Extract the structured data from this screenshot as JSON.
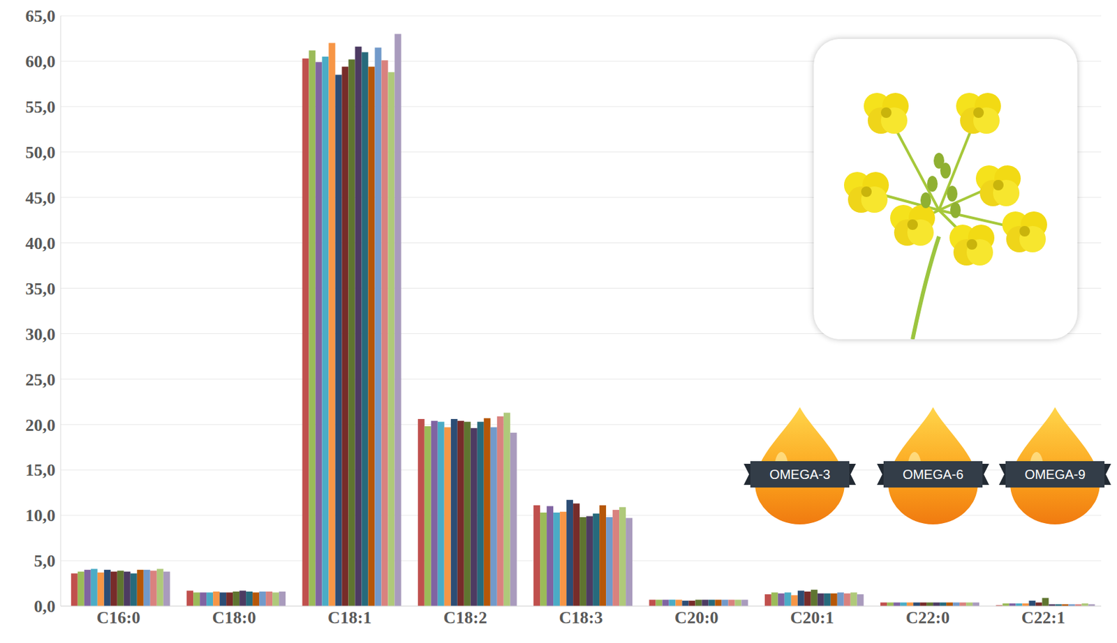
{
  "chart_data": {
    "type": "bar",
    "categories": [
      "C16:0",
      "C18:0",
      "C18:1",
      "C18:2",
      "C18:3",
      "C20:0",
      "C20:1",
      "C22:0",
      "C22:1"
    ],
    "series": [
      {
        "color": "#C0504D",
        "values": [
          3.6,
          1.7,
          60.3,
          20.6,
          11.1,
          0.7,
          1.3,
          0.4,
          0.1
        ]
      },
      {
        "color": "#9BBB59",
        "values": [
          3.8,
          1.5,
          61.2,
          19.8,
          10.3,
          0.7,
          1.5,
          0.4,
          0.3
        ]
      },
      {
        "color": "#8064A2",
        "values": [
          4.0,
          1.5,
          59.9,
          20.4,
          11.0,
          0.7,
          1.4,
          0.4,
          0.3
        ]
      },
      {
        "color": "#4BACC6",
        "values": [
          4.1,
          1.5,
          60.5,
          20.3,
          10.3,
          0.7,
          1.5,
          0.4,
          0.3
        ]
      },
      {
        "color": "#F79646",
        "values": [
          3.7,
          1.6,
          62.0,
          19.7,
          10.4,
          0.7,
          1.2,
          0.4,
          0.3
        ]
      },
      {
        "color": "#2C4D75",
        "values": [
          4.0,
          1.5,
          58.5,
          20.6,
          11.7,
          0.6,
          1.7,
          0.4,
          0.6
        ]
      },
      {
        "color": "#772C2A",
        "values": [
          3.8,
          1.5,
          59.4,
          20.4,
          11.3,
          0.6,
          1.6,
          0.4,
          0.4
        ]
      },
      {
        "color": "#5F7530",
        "values": [
          3.9,
          1.6,
          60.2,
          20.3,
          9.8,
          0.7,
          1.8,
          0.4,
          0.9
        ]
      },
      {
        "color": "#4D3B62",
        "values": [
          3.8,
          1.7,
          61.6,
          19.6,
          9.9,
          0.7,
          1.4,
          0.4,
          0.2
        ]
      },
      {
        "color": "#276A7C",
        "values": [
          3.6,
          1.6,
          61.0,
          20.3,
          10.2,
          0.7,
          1.4,
          0.4,
          0.2
        ]
      },
      {
        "color": "#B65708",
        "values": [
          4.0,
          1.5,
          59.4,
          20.7,
          11.1,
          0.7,
          1.4,
          0.4,
          0.2
        ]
      },
      {
        "color": "#729ACA",
        "values": [
          4.0,
          1.6,
          61.5,
          19.7,
          9.8,
          0.7,
          1.5,
          0.4,
          0.2
        ]
      },
      {
        "color": "#D9827F",
        "values": [
          3.9,
          1.6,
          60.1,
          20.9,
          10.6,
          0.7,
          1.4,
          0.4,
          0.2
        ]
      },
      {
        "color": "#AFC97A",
        "values": [
          4.1,
          1.5,
          58.8,
          21.3,
          10.9,
          0.7,
          1.5,
          0.4,
          0.3
        ]
      },
      {
        "color": "#A99BBD",
        "values": [
          3.8,
          1.6,
          63.0,
          19.1,
          9.7,
          0.7,
          1.3,
          0.4,
          0.2
        ]
      }
    ],
    "ylim": [
      0,
      65
    ],
    "yticks": [
      {
        "value": 0,
        "label": "0,0"
      },
      {
        "value": 5,
        "label": "5,0"
      },
      {
        "value": 10,
        "label": "10,0"
      },
      {
        "value": 15,
        "label": "15,0"
      },
      {
        "value": 20,
        "label": "20,0"
      },
      {
        "value": 25,
        "label": "25,0"
      },
      {
        "value": 30,
        "label": "30,0"
      },
      {
        "value": 35,
        "label": "35,0"
      },
      {
        "value": 40,
        "label": "40,0"
      },
      {
        "value": 45,
        "label": "45,0"
      },
      {
        "value": 50,
        "label": "50,0"
      },
      {
        "value": 55,
        "label": "55,0"
      },
      {
        "value": 60,
        "label": "60,0"
      },
      {
        "value": 65,
        "label": "65,0"
      }
    ],
    "annotations": [
      "OMEGA-3",
      "OMEGA-6",
      "OMEGA-9"
    ],
    "grid": true
  }
}
